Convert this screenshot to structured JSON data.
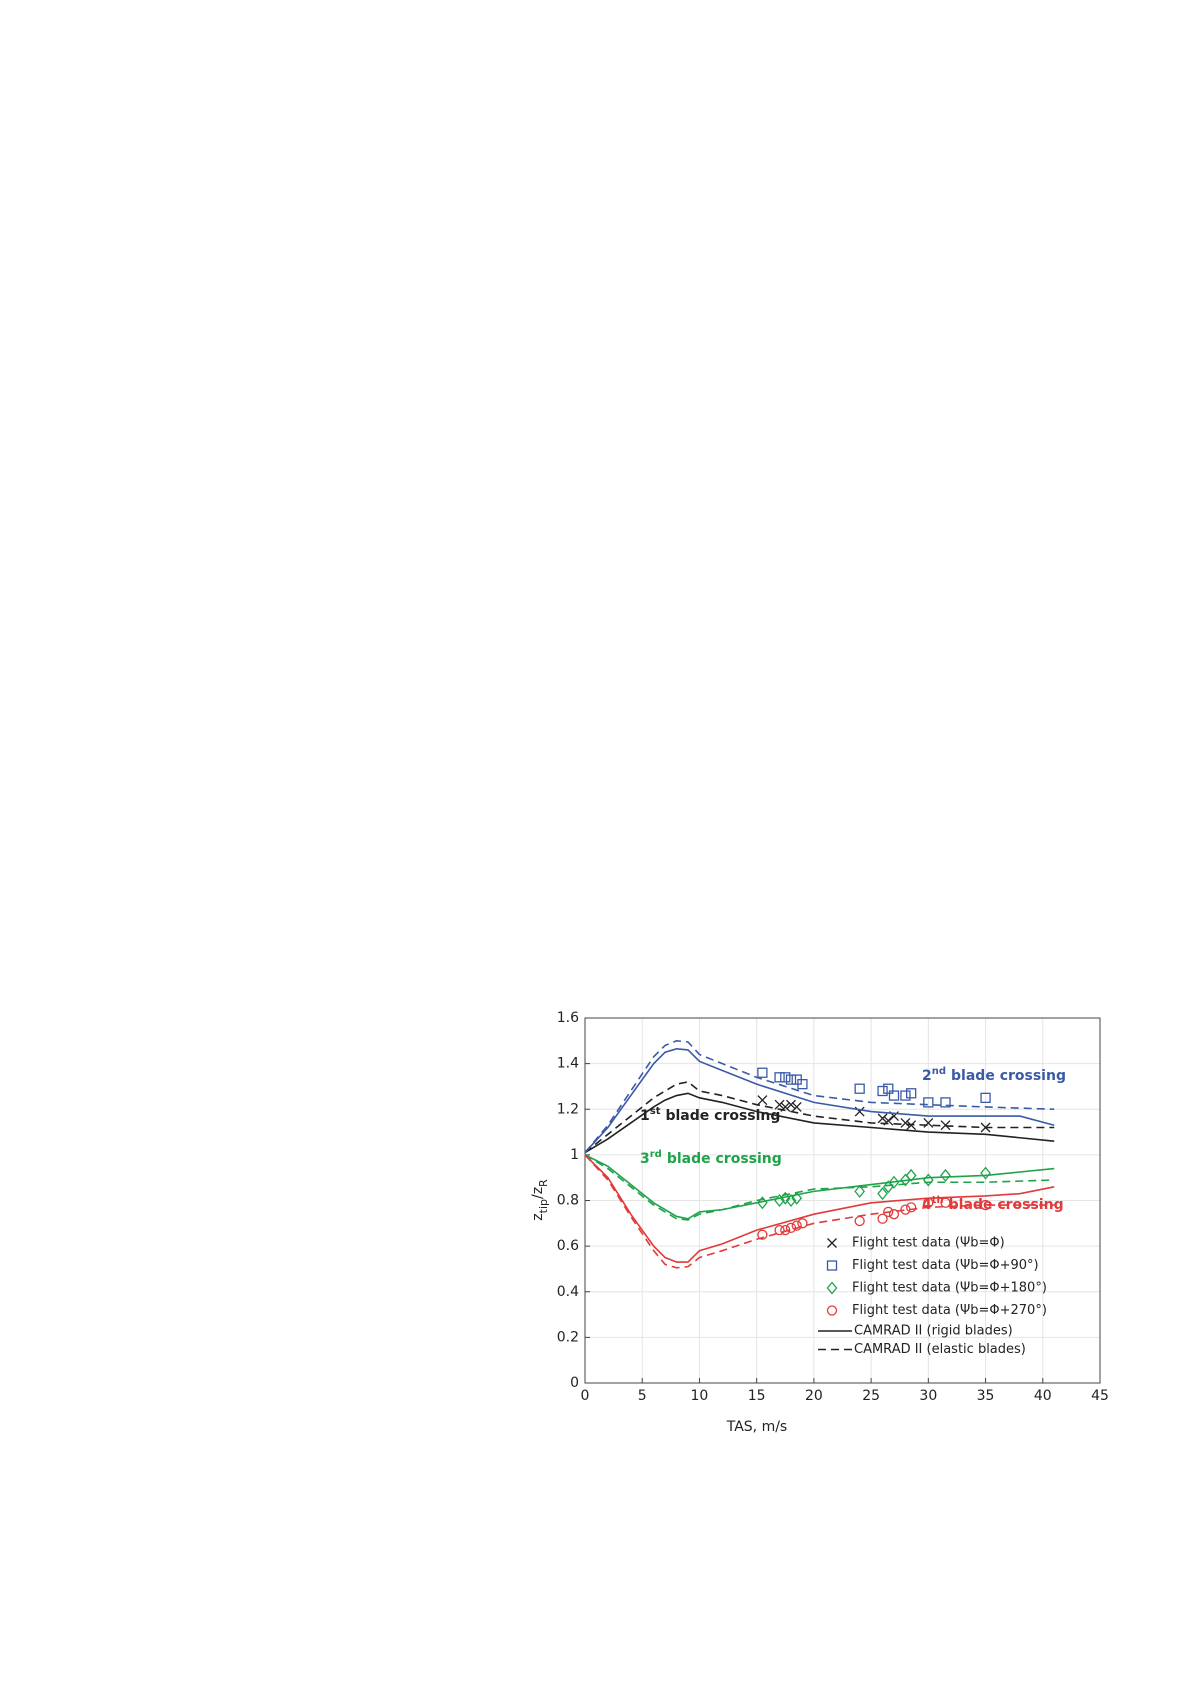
{
  "chart_data": {
    "type": "line",
    "x_label": "TAS, m/s",
    "y_label": {
      "z1": "z",
      "sub1": "tip",
      "slash": "/z",
      "sub2": "R"
    },
    "xlim": [
      0,
      45
    ],
    "xticks": [
      0,
      5,
      10,
      15,
      20,
      25,
      30,
      35,
      40,
      45
    ],
    "ylim": [
      0,
      1.6
    ],
    "yticks": [
      0,
      0.2,
      0.4,
      0.6,
      0.8,
      1,
      1.2,
      1.4,
      1.6
    ],
    "grid": true,
    "legend": "lower right",
    "line_styles": [
      {
        "name": "CAMRAD II (rigid blades)",
        "dash": "solid"
      },
      {
        "name": "CAMRAD II (elastic blades)",
        "dash": "dashed"
      }
    ],
    "crossings": [
      {
        "color": "#222222",
        "label": {
          "number": "1",
          "sup": "st",
          "text": "blade crossing"
        },
        "scatter": {
          "name": "Flight test data (Ψb=Φ)",
          "marker": "x",
          "x": [
            15.5,
            17,
            17.5,
            18,
            18.5,
            24,
            26,
            26.5,
            27,
            28,
            28.5,
            30,
            31.5,
            35
          ],
          "values": [
            1.24,
            1.22,
            1.21,
            1.22,
            1.21,
            1.19,
            1.16,
            1.15,
            1.17,
            1.14,
            1.13,
            1.14,
            1.13,
            1.12
          ]
        },
        "rigid": {
          "x": [
            0,
            2,
            4,
            6,
            7,
            8,
            9,
            10,
            12,
            15,
            20,
            25,
            30,
            35,
            41
          ],
          "values": [
            1.01,
            1.07,
            1.14,
            1.21,
            1.24,
            1.26,
            1.27,
            1.25,
            1.23,
            1.19,
            1.14,
            1.12,
            1.1,
            1.09,
            1.06
          ]
        },
        "elastic": {
          "x": [
            0,
            2,
            4,
            6,
            7,
            8,
            9,
            10,
            12,
            15,
            20,
            25,
            30,
            35,
            41
          ],
          "values": [
            1.01,
            1.09,
            1.17,
            1.25,
            1.28,
            1.31,
            1.32,
            1.28,
            1.26,
            1.22,
            1.17,
            1.14,
            1.13,
            1.12,
            1.12
          ]
        }
      },
      {
        "color": "#3a5aa8",
        "label": {
          "number": "2",
          "sup": "nd",
          "text": "blade crossing"
        },
        "scatter": {
          "name": "Flight test data (Ψb=Φ+90°)",
          "marker": "square",
          "x": [
            15.5,
            17,
            17.5,
            18,
            18.5,
            19,
            24,
            26,
            26.5,
            27,
            28,
            28.5,
            30,
            31.5,
            35
          ],
          "values": [
            1.36,
            1.34,
            1.34,
            1.33,
            1.33,
            1.31,
            1.29,
            1.28,
            1.29,
            1.26,
            1.26,
            1.27,
            1.23,
            1.23,
            1.25
          ]
        },
        "rigid": {
          "x": [
            0,
            2,
            4,
            6,
            7,
            8,
            9,
            10,
            12,
            15,
            20,
            25,
            30,
            35,
            38,
            41
          ],
          "values": [
            1.01,
            1.12,
            1.26,
            1.4,
            1.45,
            1.465,
            1.46,
            1.41,
            1.37,
            1.31,
            1.23,
            1.19,
            1.17,
            1.17,
            1.17,
            1.13
          ]
        },
        "elastic": {
          "x": [
            0,
            2,
            4,
            6,
            7,
            8,
            9,
            10,
            12,
            15,
            20,
            25,
            30,
            35,
            41
          ],
          "values": [
            1.01,
            1.13,
            1.28,
            1.43,
            1.48,
            1.5,
            1.495,
            1.44,
            1.4,
            1.34,
            1.26,
            1.23,
            1.22,
            1.21,
            1.2
          ]
        }
      },
      {
        "color": "#1fa34a",
        "label": {
          "number": "3",
          "sup": "rd",
          "text": "blade crossing"
        },
        "scatter": {
          "name": "Flight test data (Ψb=Φ+180°)",
          "marker": "diamond",
          "x": [
            15.5,
            17,
            17.5,
            18,
            18.5,
            24,
            26,
            26.5,
            27,
            28,
            28.5,
            30,
            31.5,
            35
          ],
          "values": [
            0.79,
            0.8,
            0.81,
            0.8,
            0.81,
            0.84,
            0.83,
            0.86,
            0.88,
            0.89,
            0.91,
            0.89,
            0.91,
            0.92
          ]
        },
        "rigid": {
          "x": [
            0,
            2,
            4,
            6,
            8,
            9,
            10,
            12,
            15,
            20,
            25,
            30,
            35,
            41
          ],
          "values": [
            1,
            0.95,
            0.87,
            0.79,
            0.73,
            0.72,
            0.75,
            0.76,
            0.79,
            0.84,
            0.87,
            0.9,
            0.91,
            0.94
          ]
        },
        "elastic": {
          "x": [
            0,
            2,
            4,
            6,
            8,
            9,
            10,
            12,
            15,
            20,
            25,
            30,
            35,
            41
          ],
          "values": [
            1,
            0.94,
            0.86,
            0.78,
            0.72,
            0.715,
            0.74,
            0.76,
            0.8,
            0.85,
            0.86,
            0.88,
            0.88,
            0.89
          ]
        }
      },
      {
        "color": "#e23a3a",
        "label": {
          "number": "4",
          "sup": "th",
          "text": "blade crossing"
        },
        "scatter": {
          "name": "Flight test data (Ψb=Φ+270°)",
          "marker": "circle",
          "x": [
            15.5,
            17,
            17.5,
            18,
            18.5,
            19,
            24,
            26,
            26.5,
            27,
            28,
            28.5,
            30,
            31.5,
            35
          ],
          "values": [
            0.65,
            0.67,
            0.67,
            0.68,
            0.69,
            0.7,
            0.71,
            0.72,
            0.75,
            0.74,
            0.76,
            0.77,
            0.79,
            0.79,
            0.78
          ]
        },
        "rigid": {
          "x": [
            0,
            2,
            4,
            6,
            7,
            8,
            9,
            10,
            12,
            15,
            20,
            25,
            30,
            35,
            38,
            41
          ],
          "values": [
            1,
            0.9,
            0.74,
            0.6,
            0.55,
            0.53,
            0.53,
            0.58,
            0.61,
            0.67,
            0.74,
            0.79,
            0.81,
            0.82,
            0.83,
            0.86
          ]
        },
        "elastic": {
          "x": [
            0,
            2,
            4,
            6,
            7,
            8,
            9,
            10,
            12,
            15,
            20,
            25,
            30,
            35,
            41
          ],
          "values": [
            1,
            0.89,
            0.73,
            0.58,
            0.52,
            0.505,
            0.51,
            0.55,
            0.58,
            0.63,
            0.7,
            0.74,
            0.77,
            0.78,
            0.78
          ]
        }
      }
    ]
  }
}
